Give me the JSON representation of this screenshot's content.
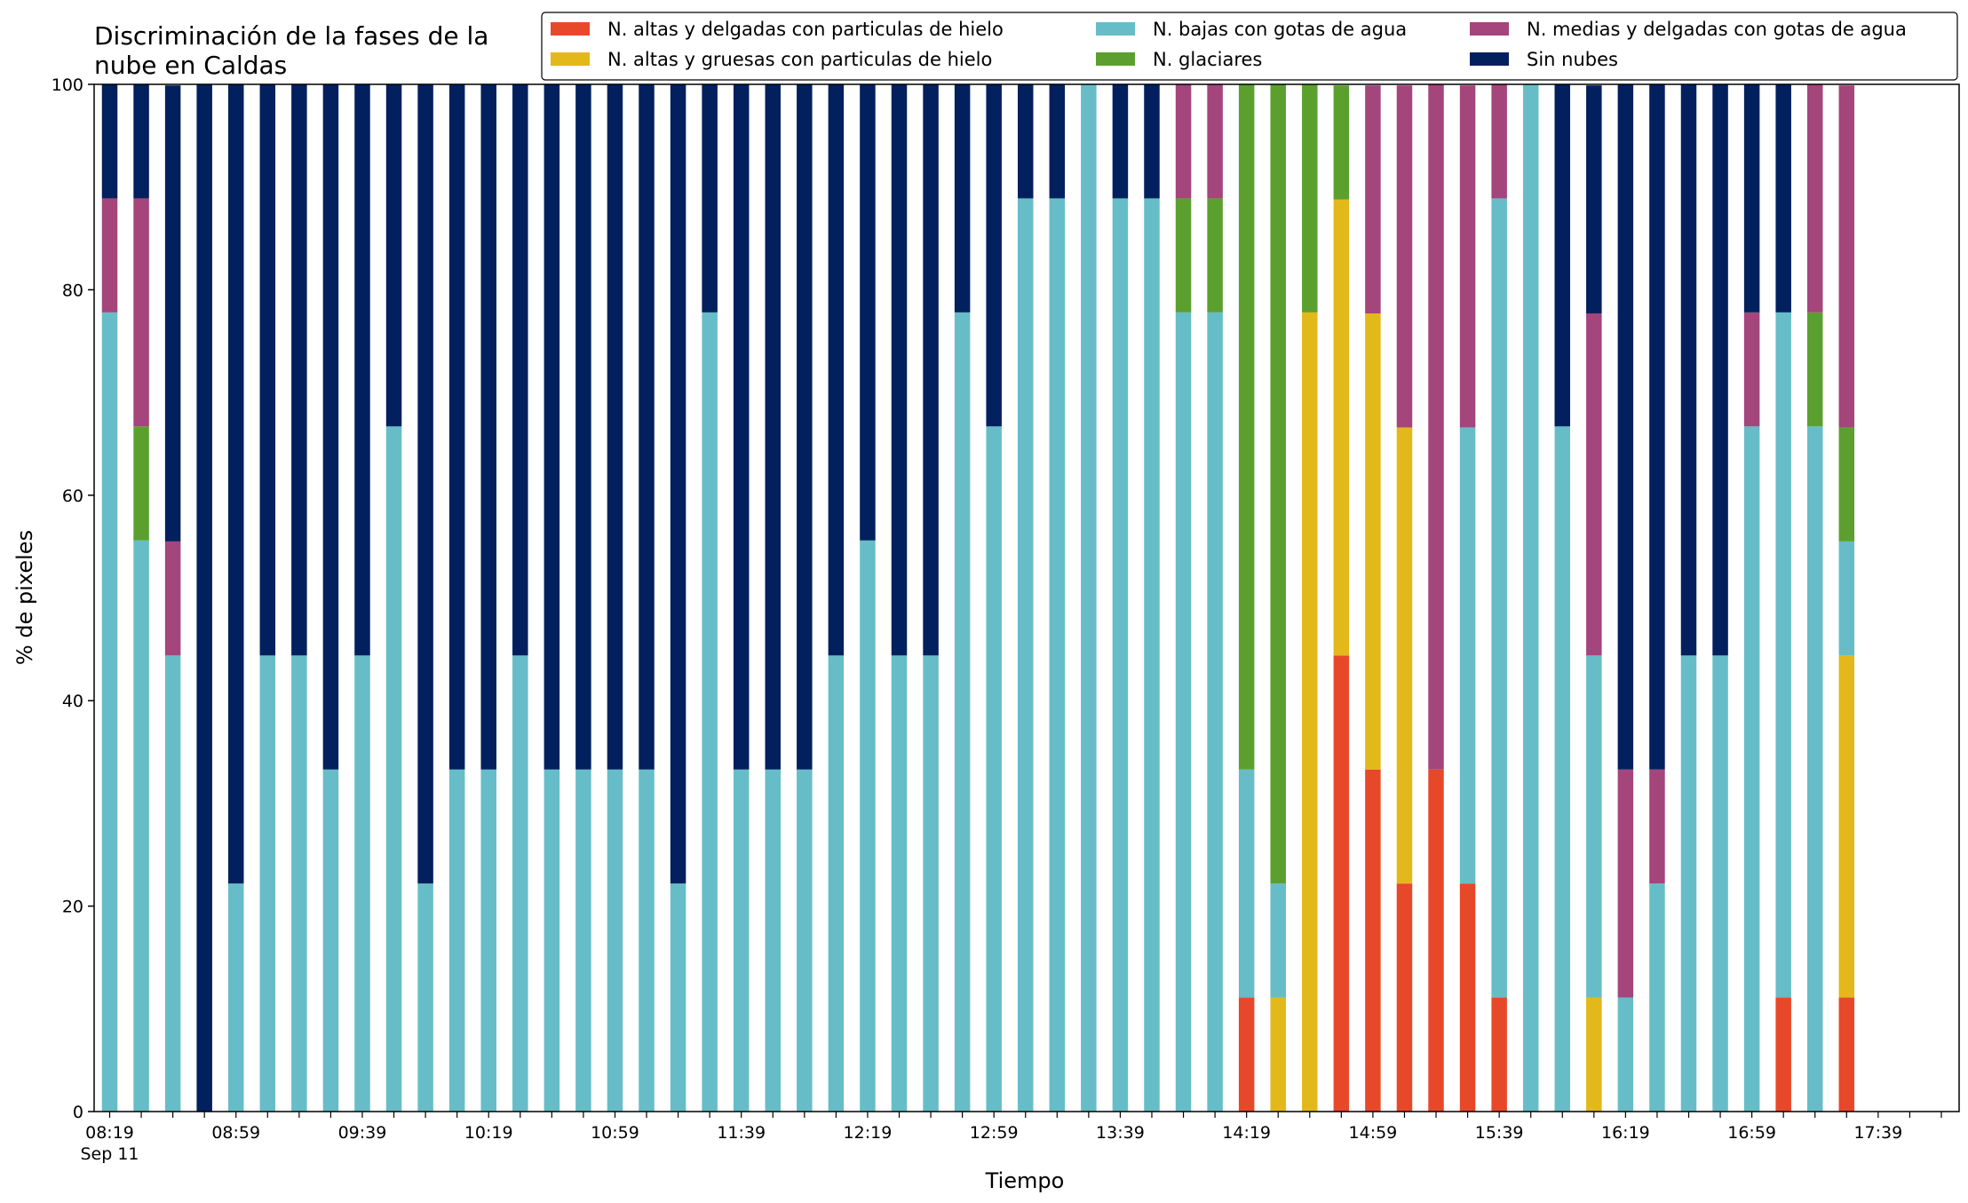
{
  "chart_data": {
    "type": "bar",
    "stacked": true,
    "title_lines": [
      "Discriminación de la fases de la",
      "nube en Caldas"
    ],
    "xlabel": "Tiempo",
    "ylabel": "% de pixeles",
    "ylim": [
      0,
      100
    ],
    "yticks": [
      "0",
      "20",
      "40",
      "60",
      "80",
      "100"
    ],
    "xtick_labels": [
      "08:19",
      "08:59",
      "09:39",
      "10:19",
      "10:59",
      "11:39",
      "12:19",
      "12:59",
      "13:39",
      "14:19",
      "14:59",
      "15:39",
      "16:19",
      "16:59",
      "17:39"
    ],
    "xtick_sublabel": "Sep 11",
    "grid": false,
    "legend_position": "top-right",
    "legend_columns": 3,
    "categories": [
      "08:19",
      "08:29",
      "08:39",
      "08:49",
      "08:59",
      "09:09",
      "09:19",
      "09:29",
      "09:39",
      "09:49",
      "09:59",
      "10:09",
      "10:19",
      "10:29",
      "10:39",
      "10:49",
      "10:59",
      "11:09",
      "11:19",
      "11:29",
      "11:39",
      "11:49",
      "11:59",
      "12:09",
      "12:19",
      "12:29",
      "12:39",
      "12:49",
      "12:59",
      "13:09",
      "13:19",
      "13:29",
      "13:39",
      "13:49",
      "13:59",
      "14:09",
      "14:19",
      "14:29",
      "14:39",
      "14:49",
      "14:59",
      "15:09",
      "15:19",
      "15:29",
      "15:39",
      "15:49",
      "15:59",
      "16:09",
      "16:19",
      "16:29",
      "16:39",
      "16:49",
      "16:59",
      "17:09",
      "17:19",
      "17:29"
    ],
    "series": [
      {
        "name": "N. altas y delgadas con particulas de hielo",
        "color": "#E8482A",
        "values": [
          0,
          0,
          0,
          0,
          0,
          0,
          0,
          0,
          0,
          0,
          0,
          0,
          0,
          0,
          0,
          0,
          0,
          0,
          0,
          0,
          0,
          0,
          0,
          0,
          0,
          0,
          0,
          0,
          0,
          0,
          0,
          0,
          0,
          0,
          0,
          0,
          11.1,
          0,
          0,
          44.4,
          33.3,
          22.2,
          33.3,
          22.2,
          11.1,
          0,
          0,
          0,
          0,
          0,
          0,
          0,
          0,
          11.1,
          0,
          11.1
        ]
      },
      {
        "name": "N. altas y gruesas con particulas de hielo",
        "color": "#E3B81A",
        "values": [
          0,
          0,
          0,
          0,
          0,
          0,
          0,
          0,
          0,
          0,
          0,
          0,
          0,
          0,
          0,
          0,
          0,
          0,
          0,
          0,
          0,
          0,
          0,
          0,
          0,
          0,
          0,
          0,
          0,
          0,
          0,
          0,
          0,
          0,
          0,
          0,
          0,
          11.1,
          77.8,
          44.4,
          44.4,
          44.4,
          0,
          0,
          0,
          0,
          0,
          11.1,
          0,
          0,
          0,
          0,
          0,
          0,
          0,
          33.3
        ]
      },
      {
        "name": "N. bajas con gotas de agua",
        "color": "#66BDC8",
        "values": [
          77.8,
          55.6,
          44.4,
          0,
          22.2,
          44.4,
          44.4,
          33.3,
          44.4,
          66.7,
          22.2,
          33.3,
          33.3,
          44.4,
          33.3,
          33.3,
          33.3,
          33.3,
          22.2,
          77.8,
          33.3,
          33.3,
          33.3,
          44.4,
          55.6,
          44.4,
          44.4,
          77.8,
          66.7,
          88.9,
          88.9,
          100,
          88.9,
          88.9,
          77.8,
          77.8,
          22.2,
          11.1,
          0,
          0,
          0,
          0,
          0,
          44.4,
          77.8,
          100,
          66.7,
          33.3,
          11.1,
          22.2,
          44.4,
          44.4,
          66.7,
          66.7,
          66.7,
          11.1
        ]
      },
      {
        "name": "N. glaciares",
        "color": "#5BA02E",
        "values": [
          0,
          11.1,
          0,
          0,
          0,
          0,
          0,
          0,
          0,
          0,
          0,
          0,
          0,
          0,
          0,
          0,
          0,
          0,
          0,
          0,
          0,
          0,
          0,
          0,
          0,
          0,
          0,
          0,
          0,
          0,
          0,
          0,
          0,
          0,
          11.1,
          11.1,
          66.7,
          77.8,
          22.2,
          11.1,
          0,
          0,
          0,
          0,
          0,
          0,
          0,
          0,
          0,
          0,
          0,
          0,
          0,
          0,
          11.1,
          11.1
        ]
      },
      {
        "name": "N. medias y delgadas con gotas de agua",
        "color": "#A4457B",
        "values": [
          11.1,
          22.2,
          11.1,
          0,
          0,
          0,
          0,
          0,
          0,
          0,
          0,
          0,
          0,
          0,
          0,
          0,
          0,
          0,
          0,
          0,
          0,
          0,
          0,
          0,
          0,
          0,
          0,
          0,
          0,
          0,
          0,
          0,
          0,
          0,
          11.1,
          11.1,
          0,
          0,
          0,
          0,
          22.2,
          33.3,
          66.7,
          33.3,
          11.1,
          0,
          0,
          33.3,
          22.2,
          11.1,
          0,
          0,
          11.1,
          0,
          22.2,
          33.3
        ]
      },
      {
        "name": "Sin nubes",
        "color": "#02205E",
        "values": [
          11.1,
          11.1,
          44.4,
          100,
          77.8,
          55.6,
          55.6,
          66.7,
          55.6,
          33.3,
          77.8,
          66.7,
          66.7,
          55.6,
          66.7,
          66.7,
          66.7,
          66.7,
          77.8,
          22.2,
          66.7,
          66.7,
          66.7,
          55.6,
          44.4,
          55.6,
          55.6,
          22.2,
          33.3,
          11.1,
          11.1,
          0,
          11.1,
          11.1,
          0,
          0,
          0,
          0,
          0,
          0,
          0,
          0,
          0,
          0,
          0,
          0,
          33.3,
          22.2,
          66.7,
          66.7,
          55.6,
          55.6,
          22.2,
          22.2,
          0,
          0
        ]
      }
    ]
  }
}
